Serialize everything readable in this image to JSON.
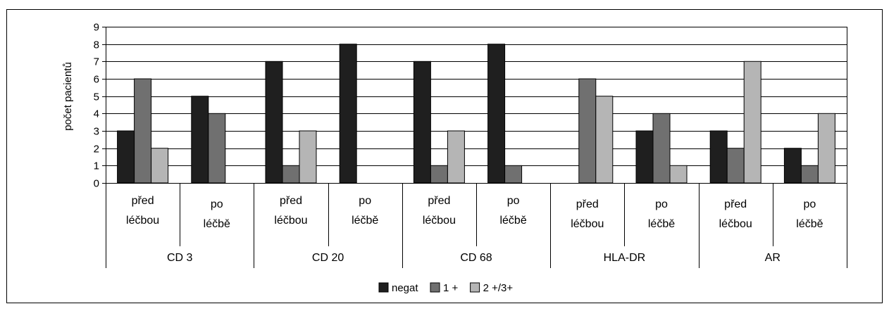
{
  "chart_data": {
    "type": "bar",
    "ylabel": "počet pacientů",
    "ylim": [
      0,
      9
    ],
    "yticks": [
      "0",
      "1",
      "2",
      "3",
      "4",
      "5",
      "6",
      "7",
      "8",
      "9"
    ],
    "grid": true,
    "legend_position": "bottom",
    "groups": [
      {
        "label": "CD 3",
        "subs": [
          [
            "před",
            "léčbou"
          ],
          [
            "po",
            "léčbě"
          ]
        ]
      },
      {
        "label": "CD 20",
        "subs": [
          [
            "před",
            "léčbou"
          ],
          [
            "po",
            "léčbě"
          ]
        ]
      },
      {
        "label": "CD 68",
        "subs": [
          [
            "před",
            "léčbou"
          ],
          [
            "po",
            "léčbě"
          ]
        ]
      },
      {
        "label": "HLA-DR",
        "subs": [
          [
            "před",
            "léčbou"
          ],
          [
            "po",
            "léčbě"
          ]
        ]
      },
      {
        "label": "AR",
        "subs": [
          [
            "před",
            "léčbou"
          ],
          [
            "po",
            "léčbě"
          ]
        ]
      }
    ],
    "series": [
      {
        "name": "negat",
        "color": "#1f1f1f",
        "values": [
          3,
          5,
          7,
          8,
          7,
          8,
          0,
          3,
          3,
          2
        ]
      },
      {
        "name": "1 +",
        "color": "#707070",
        "values": [
          6,
          4,
          1,
          0,
          1,
          1,
          6,
          4,
          2,
          1
        ]
      },
      {
        "name": "2 +/3+",
        "color": "#b5b5b5",
        "values": [
          2,
          0,
          3,
          0,
          3,
          0,
          5,
          1,
          7,
          4
        ]
      }
    ]
  }
}
